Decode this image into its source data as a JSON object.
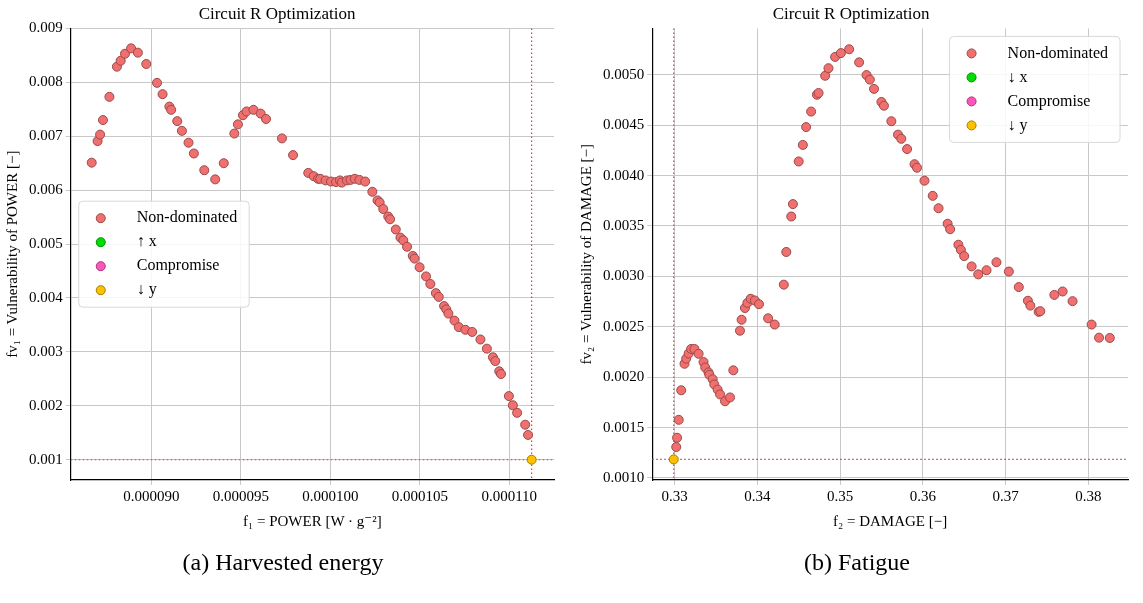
{
  "chart_data": [
    {
      "type": "scatter",
      "title": "Circuit R Optimization",
      "xlabel": "f₁ = POWER [W · g⁻²]",
      "ylabel": "fv₁ = Vulnerability of POWER [−]",
      "annotations": [
        "(a) Harvested energy"
      ],
      "xlim": [
        8.55e-05,
        0.0001125
      ],
      "ylim": [
        0.000624,
        0.009
      ],
      "xticks": [
        {
          "value": 9e-05,
          "label": "0.000090"
        },
        {
          "value": 9.5e-05,
          "label": "0.000095"
        },
        {
          "value": 0.0001,
          "label": "0.000100"
        },
        {
          "value": 0.000105,
          "label": "0.000105"
        },
        {
          "value": 0.00011,
          "label": "0.000110"
        }
      ],
      "yticks": [
        0.001,
        0.002,
        0.003,
        0.004,
        0.005,
        0.006,
        0.007,
        0.008,
        0.009
      ],
      "grid": true,
      "legend": "left",
      "marker": "circle",
      "ref_lines": [
        {
          "axis": "x",
          "value": 0.00011125,
          "color": "#ff3030",
          "line_style": "dotted"
        },
        {
          "axis": "y",
          "value": 0.001,
          "color": "#c04040",
          "line_style": "dotted"
        }
      ],
      "series": [
        {
          "name": "Non-dominated",
          "color": "#f07070",
          "x": [
            8.667e-05,
            8.7e-05,
            8.714e-05,
            8.73e-05,
            8.766e-05,
            8.808e-05,
            8.829e-05,
            8.853e-05,
            8.887e-05,
            8.925e-05,
            8.972e-05,
            9.032e-05,
            9.063e-05,
            9.101e-05,
            9.111e-05,
            9.145e-05,
            9.171e-05,
            9.208e-05,
            9.238e-05,
            9.296e-05,
            9.357e-05,
            9.405e-05,
            9.464e-05,
            9.484e-05,
            9.512e-05,
            9.532e-05,
            9.571e-05,
            9.611e-05,
            9.641e-05,
            9.73e-05,
            9.792e-05,
            9.877e-05,
            9.907e-05,
            9.932e-05,
            9.944e-05,
            9.974e-05,
            0.00010004,
            0.00010032,
            0.00010054,
            0.00010064,
            0.00010093,
            0.00010113,
            0.00010137,
            0.00010163,
            0.00010195,
            0.00010235,
            0.00010264,
            0.00010276,
            0.00010296,
            0.00010324,
            0.00010334,
            0.00010366,
            0.00010392,
            0.00010408,
            0.00010429,
            0.00010461,
            0.00010471,
            0.00010499,
            0.00010535,
            0.00010559,
            0.0001059,
            0.00010606,
            0.00010636,
            0.00010648,
            0.0001066,
            0.00010694,
            0.00010718,
            0.00010755,
            0.00010793,
            0.00010839,
            0.00010875,
            0.00010909,
            0.00010922,
            0.00010944,
            0.00010954,
            0.00010998,
            0.0001102,
            0.00011044,
            0.00011089,
            0.00011105
          ],
          "values": [
            0.00651,
            0.00691,
            0.00703,
            0.0073,
            0.00773,
            0.00829,
            0.0084,
            0.00853,
            0.00863,
            0.00855,
            0.00834,
            0.00799,
            0.00778,
            0.00755,
            0.00749,
            0.00728,
            0.0071,
            0.00688,
            0.00668,
            0.00637,
            0.0062,
            0.0065,
            0.00705,
            0.00722,
            0.00739,
            0.00746,
            0.00749,
            0.00742,
            0.00732,
            0.00696,
            0.00665,
            0.00632,
            0.00626,
            0.00621,
            0.00621,
            0.00618,
            0.00616,
            0.00615,
            0.00618,
            0.00614,
            0.00618,
            0.00619,
            0.00621,
            0.00619,
            0.00616,
            0.00597,
            0.00581,
            0.00577,
            0.00565,
            0.00551,
            0.00546,
            0.00527,
            0.00512,
            0.00507,
            0.00495,
            0.00478,
            0.00473,
            0.00457,
            0.0044,
            0.00426,
            0.00409,
            0.00402,
            0.00385,
            0.00379,
            0.00371,
            0.00358,
            0.00346,
            0.00341,
            0.00337,
            0.00323,
            0.00306,
            0.0029,
            0.00283,
            0.00264,
            0.00259,
            0.00218,
            0.00201,
            0.00187,
            0.00165,
            0.00146
          ]
        },
        {
          "name": "↑ x",
          "color": "#00dd00"
        },
        {
          "name": "Compromise",
          "color": "#ff55bb"
        },
        {
          "name": "↓ y",
          "color": "#ffc000",
          "x": [
            0.00011125
          ],
          "values": [
            0.001
          ]
        }
      ]
    },
    {
      "type": "scatter",
      "title": "Circuit R Optimization",
      "xlabel": "f₂ = DAMAGE [−]",
      "ylabel": "fv₂ = Vulnerability of DAMAGE [−]",
      "annotations": [
        "(b) Fatigue"
      ],
      "xlim": [
        0.3273,
        0.3848
      ],
      "ylim": [
        0.00098,
        0.00546
      ],
      "xticks": [
        0.33,
        0.34,
        0.35,
        0.36,
        0.37,
        0.38
      ],
      "yticks": [
        {
          "value": 0.001,
          "label": "0.0010"
        },
        {
          "value": 0.0015,
          "label": "0.0015"
        },
        {
          "value": 0.002,
          "label": "0.0020"
        },
        {
          "value": 0.0025,
          "label": "0.0025"
        },
        {
          "value": 0.003,
          "label": "0.0030"
        },
        {
          "value": 0.0035,
          "label": "0.0035"
        },
        {
          "value": 0.004,
          "label": "0.0040"
        },
        {
          "value": 0.0045,
          "label": "0.0045"
        },
        {
          "value": 0.005,
          "label": "0.0050"
        }
      ],
      "grid": true,
      "legend": "top right",
      "marker": "circle",
      "ref_lines": [
        {
          "axis": "x",
          "value": 0.3299,
          "color": "#ff3030",
          "line_style": "dotted"
        },
        {
          "axis": "y",
          "value": 0.001184,
          "color": "#c04040",
          "line_style": "dotted"
        }
      ],
      "series": [
        {
          "name": "Non-dominated",
          "color": "#f07070",
          "x": [
            0.3302,
            0.3303,
            0.3305,
            0.3308,
            0.3312,
            0.3314,
            0.3317,
            0.332,
            0.3324,
            0.3329,
            0.3335,
            0.3337,
            0.3341,
            0.3342,
            0.3346,
            0.3348,
            0.3352,
            0.3355,
            0.3361,
            0.3367,
            0.3371,
            0.3379,
            0.3381,
            0.3385,
            0.3388,
            0.3392,
            0.3397,
            0.3402,
            0.3413,
            0.3421,
            0.3432,
            0.3435,
            0.3441,
            0.3443,
            0.345,
            0.3455,
            0.3459,
            0.3465,
            0.3472,
            0.3474,
            0.3482,
            0.3486,
            0.3494,
            0.3501,
            0.3511,
            0.3523,
            0.3532,
            0.3536,
            0.3541,
            0.355,
            0.3553,
            0.3562,
            0.357,
            0.3574,
            0.3581,
            0.359,
            0.3593,
            0.3602,
            0.3612,
            0.3619,
            0.363,
            0.3633,
            0.3643,
            0.3646,
            0.365,
            0.3659,
            0.3667,
            0.3677,
            0.3689,
            0.3704,
            0.3716,
            0.3727,
            0.373,
            0.374,
            0.3742,
            0.3759,
            0.3769,
            0.3781,
            0.3804,
            0.3813,
            0.3826
          ],
          "values": [
            0.001307,
            0.001399,
            0.001577,
            0.00187,
            0.002133,
            0.002184,
            0.002235,
            0.00228,
            0.00228,
            0.002232,
            0.00215,
            0.002096,
            0.002048,
            0.002024,
            0.00198,
            0.001928,
            0.001877,
            0.001829,
            0.001761,
            0.001799,
            0.002068,
            0.002461,
            0.00257,
            0.002686,
            0.002737,
            0.002778,
            0.002761,
            0.002724,
            0.002584,
            0.002522,
            0.002918,
            0.003242,
            0.003594,
            0.003717,
            0.00414,
            0.004304,
            0.004481,
            0.004635,
            0.004802,
            0.004819,
            0.00499,
            0.005065,
            0.005177,
            0.005215,
            0.005253,
            0.005123,
            0.004997,
            0.004952,
            0.00486,
            0.00473,
            0.004693,
            0.004539,
            0.004406,
            0.004365,
            0.004263,
            0.004113,
            0.004078,
            0.003949,
            0.003799,
            0.003676,
            0.003522,
            0.003468,
            0.003314,
            0.003263,
            0.003201,
            0.003099,
            0.00302,
            0.003061,
            0.00314,
            0.003048,
            0.002894,
            0.002758,
            0.00271,
            0.002648,
            0.002655,
            0.002816,
            0.00285,
            0.002754,
            0.002522,
            0.002392,
            0.002389
          ]
        },
        {
          "name": "↓ x",
          "color": "#00dd00"
        },
        {
          "name": "Compromise",
          "color": "#ff55bb"
        },
        {
          "name": "↓ y",
          "color": "#ffc000",
          "x": [
            0.3299
          ],
          "values": [
            0.001184
          ]
        }
      ]
    }
  ]
}
